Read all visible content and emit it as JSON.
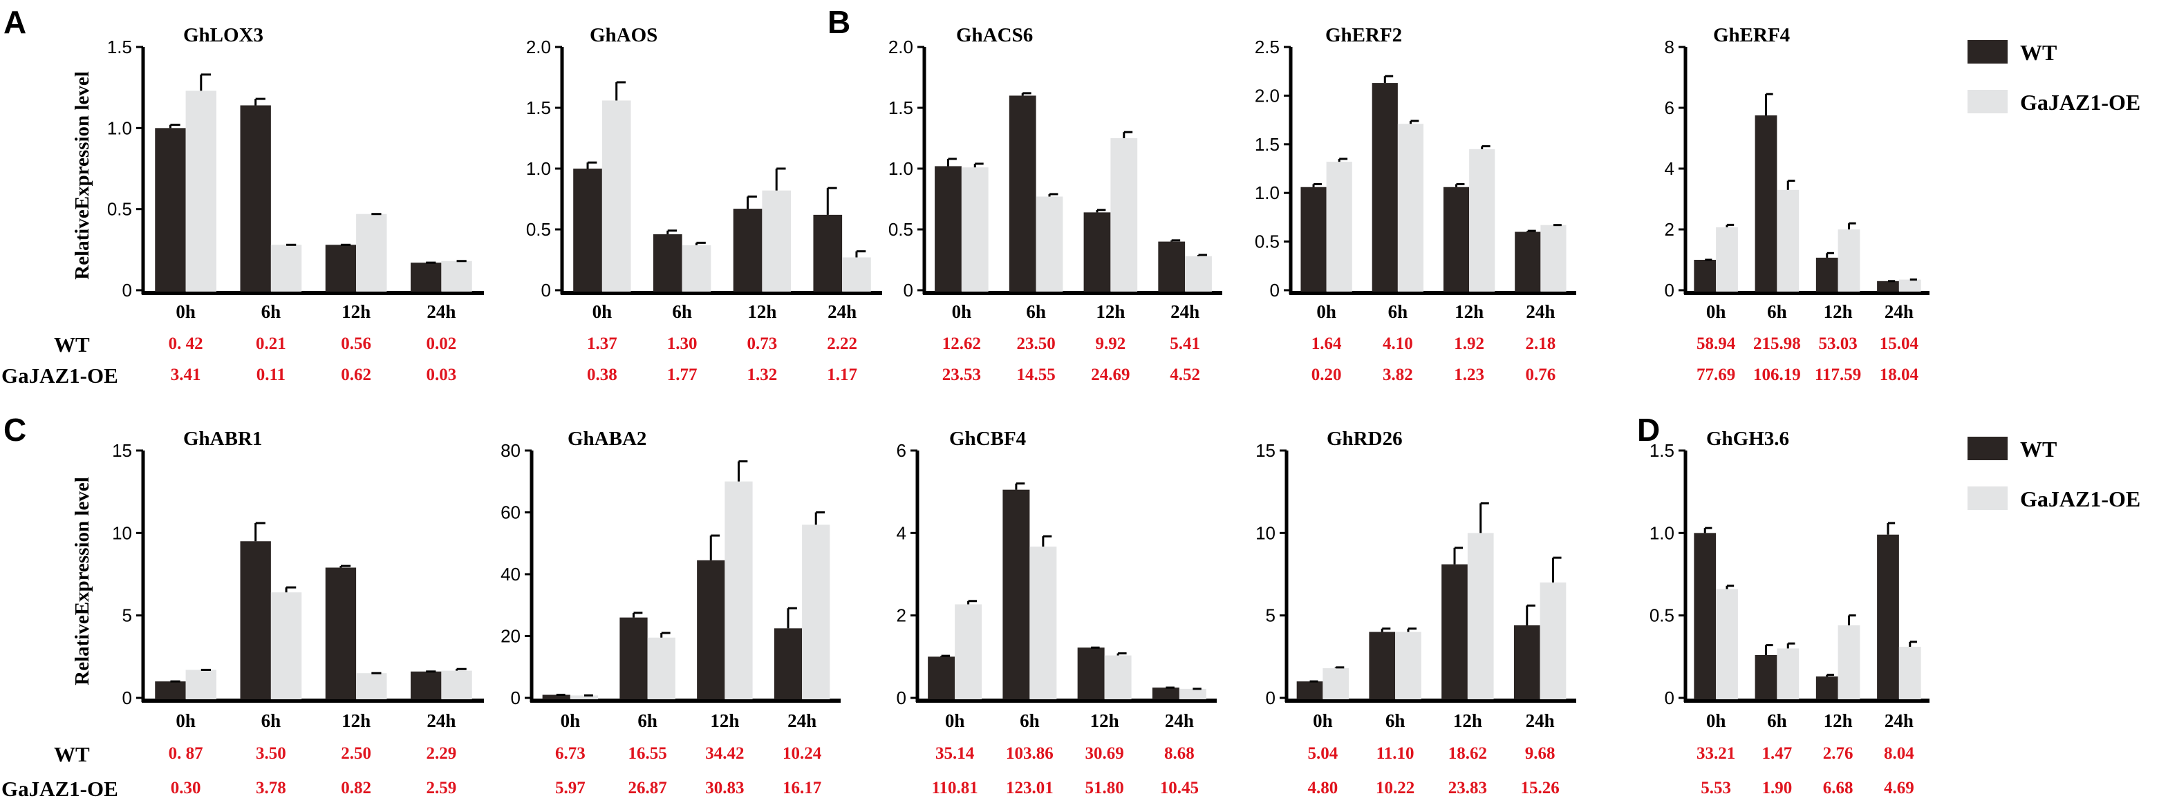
{
  "figure": {
    "y_axis_label": "RelativeExpression level",
    "row_labels": {
      "wt": "WT",
      "oe": "GaJAZ1-OE"
    },
    "legend": [
      {
        "name": "WT",
        "color": "#2b2523"
      },
      {
        "name": "GaJAZ1-OE",
        "color": "#e3e4e5"
      }
    ],
    "panel_letters": [
      "A",
      "B",
      "C",
      "D"
    ],
    "colors": {
      "wt": "#2b2523",
      "oe": "#e3e4e5",
      "fpkm_text": "#e0141e"
    }
  },
  "chart_data": [
    {
      "type": "bar",
      "title": "GhLOX3",
      "panel": "A",
      "categories": [
        "0h",
        "6h",
        "12h",
        "24h"
      ],
      "ylim": [
        0,
        1.5
      ],
      "yticks": [
        "0",
        "0.5",
        "1.0",
        "1.5"
      ],
      "ylabel": "RelativeExpression level",
      "series": [
        {
          "name": "WT",
          "values": [
            1.0,
            1.14,
            0.28,
            0.17
          ],
          "errors": [
            0.02,
            0.04,
            0.0,
            0.0
          ]
        },
        {
          "name": "GaJAZ1-OE",
          "values": [
            1.23,
            0.28,
            0.47,
            0.18
          ],
          "errors": [
            0.1,
            0.0,
            0.0,
            0.0
          ]
        }
      ],
      "value_rows": {
        "WT": [
          "0. 42",
          "0.21",
          "0.56",
          "0.02"
        ],
        "GaJAZ1-OE": [
          "3.41",
          "0.11",
          "0.62",
          "0.03"
        ]
      }
    },
    {
      "type": "bar",
      "title": "GhAOS",
      "categories": [
        "0h",
        "6h",
        "12h",
        "24h"
      ],
      "ylim": [
        0,
        2.0
      ],
      "yticks": [
        "0",
        "0.5",
        "1.0",
        "1.5",
        "2.0"
      ],
      "series": [
        {
          "name": "WT",
          "values": [
            1.0,
            0.46,
            0.67,
            0.62
          ],
          "errors": [
            0.05,
            0.03,
            0.1,
            0.22
          ]
        },
        {
          "name": "GaJAZ1-OE",
          "values": [
            1.56,
            0.37,
            0.82,
            0.27
          ],
          "errors": [
            0.15,
            0.02,
            0.18,
            0.05
          ]
        }
      ],
      "value_rows": {
        "WT": [
          "1.37",
          "1.30",
          "0.73",
          "2.22"
        ],
        "GaJAZ1-OE": [
          "0.38",
          "1.77",
          "1.32",
          "1.17"
        ]
      }
    },
    {
      "type": "bar",
      "title": "GhACS6",
      "panel": "B",
      "categories": [
        "0h",
        "6h",
        "12h",
        "24h"
      ],
      "ylim": [
        0,
        2.0
      ],
      "yticks": [
        "0",
        "0.5",
        "1.0",
        "1.5",
        "2.0"
      ],
      "series": [
        {
          "name": "WT",
          "values": [
            1.02,
            1.6,
            0.64,
            0.4
          ],
          "errors": [
            0.06,
            0.02,
            0.02,
            0.01
          ]
        },
        {
          "name": "GaJAZ1-OE",
          "values": [
            1.01,
            0.77,
            1.25,
            0.28
          ],
          "errors": [
            0.03,
            0.02,
            0.05,
            0.01
          ]
        }
      ],
      "value_rows": {
        "WT": [
          "12.62",
          "23.50",
          "9.92",
          "5.41"
        ],
        "GaJAZ1-OE": [
          "23.53",
          "14.55",
          "24.69",
          "4.52"
        ]
      }
    },
    {
      "type": "bar",
      "title": "GhERF2",
      "categories": [
        "0h",
        "6h",
        "12h",
        "24h"
      ],
      "ylim": [
        0,
        2.5
      ],
      "yticks": [
        "0",
        "0.5",
        "1.0",
        "1.5",
        "2.0",
        "2.5"
      ],
      "series": [
        {
          "name": "WT",
          "values": [
            1.06,
            2.13,
            1.06,
            0.6
          ],
          "errors": [
            0.03,
            0.07,
            0.03,
            0.01
          ]
        },
        {
          "name": "GaJAZ1-OE",
          "values": [
            1.32,
            1.71,
            1.45,
            0.67
          ],
          "errors": [
            0.03,
            0.03,
            0.03,
            0.0
          ]
        }
      ],
      "value_rows": {
        "WT": [
          "1.64",
          "4.10",
          "1.92",
          "2.18"
        ],
        "GaJAZ1-OE": [
          "0.20",
          "3.82",
          "1.23",
          "0.76"
        ]
      }
    },
    {
      "type": "bar",
      "title": "GhERF4",
      "categories": [
        "0h",
        "6h",
        "12h",
        "24h"
      ],
      "ylim": [
        0,
        8
      ],
      "yticks": [
        "0",
        "2",
        "4",
        "6",
        "8"
      ],
      "series": [
        {
          "name": "WT",
          "values": [
            1.0,
            5.75,
            1.07,
            0.3
          ],
          "errors": [
            0.0,
            0.7,
            0.15,
            0.0
          ]
        },
        {
          "name": "GaJAZ1-OE",
          "values": [
            2.07,
            3.3,
            2.0,
            0.35
          ],
          "errors": [
            0.08,
            0.3,
            0.2,
            0.0
          ]
        }
      ],
      "value_rows": {
        "WT": [
          "58.94",
          "215.98",
          "53.03",
          "15.04"
        ],
        "GaJAZ1-OE": [
          "77.69",
          "106.19",
          "117.59",
          "18.04"
        ]
      }
    },
    {
      "type": "bar",
      "title": "GhABR1",
      "panel": "C",
      "categories": [
        "0h",
        "6h",
        "12h",
        "24h"
      ],
      "ylim": [
        0,
        15
      ],
      "yticks": [
        "0",
        "5",
        "10",
        "15"
      ],
      "ylabel": "RelativeExpression level",
      "series": [
        {
          "name": "WT",
          "values": [
            1.0,
            9.5,
            7.9,
            1.6
          ],
          "errors": [
            0.0,
            1.1,
            0.1,
            0.0
          ]
        },
        {
          "name": "GaJAZ1-OE",
          "values": [
            1.7,
            6.4,
            1.5,
            1.65
          ],
          "errors": [
            0.0,
            0.3,
            0.0,
            0.1
          ]
        }
      ],
      "value_rows": {
        "WT": [
          "0. 87",
          "3.50",
          "2.50",
          "2.29"
        ],
        "GaJAZ1-OE": [
          "0.30",
          "3.78",
          "0.82",
          "2.59"
        ]
      }
    },
    {
      "type": "bar",
      "title": "GhABA2",
      "categories": [
        "0h",
        "6h",
        "12h",
        "24h"
      ],
      "ylim": [
        0,
        80
      ],
      "yticks": [
        "0",
        "20",
        "40",
        "60",
        "80"
      ],
      "series": [
        {
          "name": "WT",
          "values": [
            1.0,
            26.0,
            44.5,
            22.5
          ],
          "errors": [
            0.0,
            1.5,
            8.0,
            6.5
          ]
        },
        {
          "name": "GaJAZ1-OE",
          "values": [
            0.8,
            19.5,
            70.0,
            56.0
          ],
          "errors": [
            0.0,
            1.5,
            6.5,
            4.0
          ]
        }
      ],
      "value_rows": {
        "WT": [
          "6.73",
          "16.55",
          "34.42",
          "10.24"
        ],
        "GaJAZ1-OE": [
          "5.97",
          "26.87",
          "30.83",
          "16.17"
        ]
      }
    },
    {
      "type": "bar",
      "title": "GhCBF4",
      "categories": [
        "0h",
        "6h",
        "12h",
        "24h"
      ],
      "ylim": [
        0,
        6
      ],
      "yticks": [
        "0",
        "2",
        "4",
        "6"
      ],
      "series": [
        {
          "name": "WT",
          "values": [
            1.0,
            5.05,
            1.22,
            0.25
          ],
          "errors": [
            0.02,
            0.15,
            0.0,
            0.0
          ]
        },
        {
          "name": "GaJAZ1-OE",
          "values": [
            2.27,
            3.67,
            1.03,
            0.22
          ],
          "errors": [
            0.08,
            0.25,
            0.05,
            0.0
          ]
        }
      ],
      "value_rows": {
        "WT": [
          "35.14",
          "103.86",
          "30.69",
          "8.68"
        ],
        "GaJAZ1-OE": [
          "110.81",
          "123.01",
          "51.80",
          "10.45"
        ]
      }
    },
    {
      "type": "bar",
      "title": "GhRD26",
      "categories": [
        "0h",
        "6h",
        "12h",
        "24h"
      ],
      "ylim": [
        0,
        15
      ],
      "yticks": [
        "0",
        "5",
        "10",
        "15"
      ],
      "series": [
        {
          "name": "WT",
          "values": [
            1.0,
            4.0,
            8.1,
            4.4
          ],
          "errors": [
            0.0,
            0.2,
            1.0,
            1.2
          ]
        },
        {
          "name": "GaJAZ1-OE",
          "values": [
            1.8,
            4.0,
            10.0,
            7.0
          ],
          "errors": [
            0.05,
            0.2,
            1.8,
            1.5
          ]
        }
      ],
      "value_rows": {
        "WT": [
          "5.04",
          "11.10",
          "18.62",
          "9.68"
        ],
        "GaJAZ1-OE": [
          "4.80",
          "10.22",
          "23.83",
          "15.26"
        ]
      }
    },
    {
      "type": "bar",
      "title": "GhGH3.6",
      "panel": "D",
      "categories": [
        "0h",
        "6h",
        "12h",
        "24h"
      ],
      "ylim": [
        0,
        1.5
      ],
      "yticks": [
        "0",
        "0.5",
        "1.0",
        "1.5"
      ],
      "series": [
        {
          "name": "WT",
          "values": [
            1.0,
            0.26,
            0.13,
            0.99
          ],
          "errors": [
            0.03,
            0.06,
            0.01,
            0.07
          ]
        },
        {
          "name": "GaJAZ1-OE",
          "values": [
            0.66,
            0.3,
            0.44,
            0.31
          ],
          "errors": [
            0.02,
            0.03,
            0.06,
            0.03
          ]
        }
      ],
      "value_rows": {
        "WT": [
          "33.21",
          "1.47",
          "2.76",
          "8.04"
        ],
        "GaJAZ1-OE": [
          "5.53",
          "1.90",
          "6.68",
          "4.69"
        ]
      }
    }
  ]
}
